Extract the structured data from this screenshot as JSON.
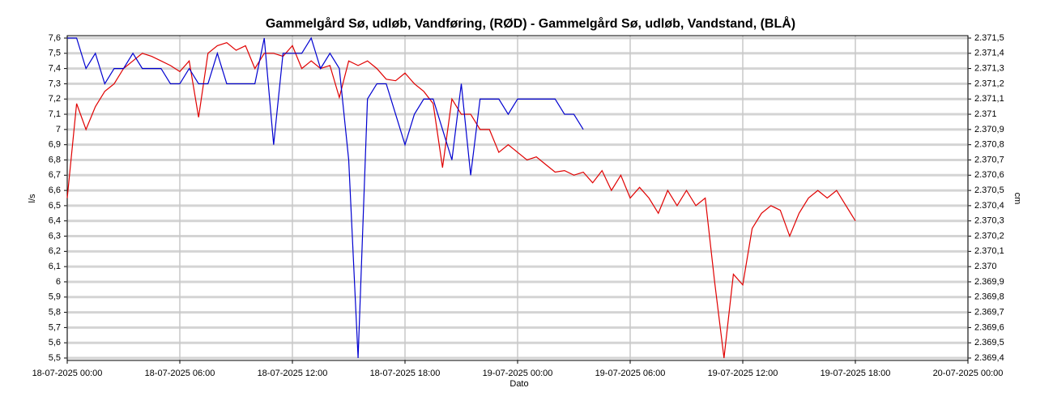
{
  "chart_data": {
    "type": "line",
    "title": "Gammelgård Sø, udløb, Vandføring, (RØD)  -  Gammelgård Sø, udløb, Vandstand, (BLÅ)",
    "x_label": "Dato",
    "y_label": "l/s",
    "y2_label": "cm",
    "x": [
      "18-07-2025 00:00",
      "18-07-2025 00:30",
      "18-07-2025 01:00",
      "18-07-2025 01:30",
      "18-07-2025 02:00",
      "18-07-2025 02:30",
      "18-07-2025 03:00",
      "18-07-2025 03:30",
      "18-07-2025 04:00",
      "18-07-2025 04:30",
      "18-07-2025 05:00",
      "18-07-2025 05:30",
      "18-07-2025 06:00",
      "18-07-2025 06:30",
      "18-07-2025 07:00",
      "18-07-2025 07:30",
      "18-07-2025 08:00",
      "18-07-2025 08:30",
      "18-07-2025 09:00",
      "18-07-2025 09:30",
      "18-07-2025 10:00",
      "18-07-2025 10:30",
      "18-07-2025 11:00",
      "18-07-2025 11:30",
      "18-07-2025 12:00",
      "18-07-2025 12:30",
      "18-07-2025 13:00",
      "18-07-2025 13:30",
      "18-07-2025 14:00",
      "18-07-2025 14:30",
      "18-07-2025 15:00",
      "18-07-2025 15:30",
      "18-07-2025 16:00",
      "18-07-2025 16:30",
      "18-07-2025 17:00",
      "18-07-2025 17:30",
      "18-07-2025 18:00",
      "18-07-2025 18:30",
      "18-07-2025 19:00",
      "18-07-2025 19:30",
      "18-07-2025 20:00",
      "18-07-2025 20:30",
      "18-07-2025 21:00",
      "18-07-2025 21:30",
      "18-07-2025 22:00",
      "18-07-2025 22:30",
      "18-07-2025 23:00",
      "18-07-2025 23:30",
      "19-07-2025 00:00",
      "19-07-2025 00:30",
      "19-07-2025 01:00",
      "19-07-2025 01:30",
      "19-07-2025 02:00",
      "19-07-2025 02:30",
      "19-07-2025 03:00",
      "19-07-2025 03:30",
      "19-07-2025 04:00",
      "19-07-2025 04:30",
      "19-07-2025 05:00",
      "19-07-2025 05:30",
      "19-07-2025 06:00",
      "19-07-2025 06:30",
      "19-07-2025 07:00",
      "19-07-2025 07:30",
      "19-07-2025 08:00",
      "19-07-2025 08:30",
      "19-07-2025 09:00",
      "19-07-2025 09:30",
      "19-07-2025 10:00",
      "19-07-2025 10:30",
      "19-07-2025 11:00",
      "19-07-2025 11:30",
      "19-07-2025 12:00",
      "19-07-2025 12:30",
      "19-07-2025 13:00",
      "19-07-2025 13:30",
      "19-07-2025 14:00",
      "19-07-2025 14:30",
      "19-07-2025 15:00",
      "19-07-2025 15:30",
      "19-07-2025 16:00",
      "19-07-2025 16:30",
      "19-07-2025 17:00",
      "19-07-2025 17:30",
      "19-07-2025 18:00"
    ],
    "series": [
      {
        "color": "#e00000",
        "values": [
          6.55,
          7.17,
          7.0,
          7.15,
          7.25,
          7.3,
          7.4,
          7.45,
          7.5,
          7.48,
          7.45,
          7.42,
          7.38,
          7.45,
          7.08,
          7.5,
          7.55,
          7.57,
          7.52,
          7.55,
          7.4,
          7.5,
          7.5,
          7.48,
          7.55,
          7.4,
          7.45,
          7.4,
          7.42,
          7.21,
          7.45,
          7.42,
          7.45,
          7.4,
          7.33,
          7.32,
          7.37,
          7.3,
          7.25,
          7.17,
          6.75,
          7.2,
          7.1,
          7.1,
          7.0,
          7.0,
          6.85,
          6.9,
          6.85,
          6.8,
          6.82,
          6.77,
          6.72,
          6.73,
          6.7,
          6.72,
          6.65,
          6.73,
          6.6,
          6.7,
          6.55,
          6.62,
          6.55,
          6.45,
          6.6,
          6.5,
          6.6,
          6.5,
          6.55,
          6.0,
          5.5,
          6.05,
          5.98,
          6.35,
          6.45,
          6.5,
          6.47,
          6.3,
          6.45,
          6.55,
          6.6,
          6.55,
          6.6,
          6.5,
          6.4
        ]
      },
      {
        "color": "#0000d0",
        "axis": "y2",
        "values": [
          2371.5,
          2371.5,
          2371.3,
          2371.4,
          2371.2,
          2371.3,
          2371.3,
          2371.4,
          2371.3,
          2371.3,
          2371.3,
          2371.2,
          2371.2,
          2371.3,
          2371.2,
          2371.2,
          2371.4,
          2371.2,
          2371.2,
          2371.2,
          2371.2,
          2371.5,
          2370.8,
          2371.4,
          2371.4,
          2371.4,
          2371.5,
          2371.3,
          2371.4,
          2371.3,
          2370.7,
          2369.4,
          2371.1,
          2371.2,
          2371.2,
          2371.0,
          2370.8,
          2371.0,
          2371.1,
          2371.1,
          2370.9,
          2370.7,
          2371.2,
          2370.6,
          2371.1,
          2371.1,
          2371.1,
          2371.0,
          2371.1,
          2371.1,
          2371.1,
          2371.1,
          2371.1,
          2371.0,
          2371.0,
          2370.9,
          null,
          null,
          null,
          null,
          null,
          null,
          null,
          null,
          null,
          null,
          null,
          null,
          null,
          null,
          null,
          null,
          null,
          null,
          null,
          null,
          null,
          null,
          null,
          null,
          null,
          null,
          null,
          null,
          null
        ]
      }
    ],
    "xlim": [
      "18-07-2025 00:00",
      "20-07-2025 00:00"
    ],
    "xticks": [
      "18-07-2025 00:00",
      "18-07-2025 06:00",
      "18-07-2025 12:00",
      "18-07-2025 18:00",
      "19-07-2025 00:00",
      "19-07-2025 06:00",
      "19-07-2025 12:00",
      "19-07-2025 18:00",
      "20-07-2025 00:00"
    ],
    "ylim": [
      5.5,
      7.6
    ],
    "yticks": [
      {
        "value": 5.5,
        "label": "5,5"
      },
      {
        "value": 5.6,
        "label": "5,6"
      },
      {
        "value": 5.7,
        "label": "5,7"
      },
      {
        "value": 5.8,
        "label": "5,8"
      },
      {
        "value": 5.9,
        "label": "5,9"
      },
      6,
      {
        "value": 6.1,
        "label": "6,1"
      },
      {
        "value": 6.2,
        "label": "6,2"
      },
      {
        "value": 6.3,
        "label": "6,3"
      },
      {
        "value": 6.4,
        "label": "6,4"
      },
      {
        "value": 6.5,
        "label": "6,5"
      },
      {
        "value": 6.6,
        "label": "6,6"
      },
      {
        "value": 6.7,
        "label": "6,7"
      },
      {
        "value": 6.8,
        "label": "6,8"
      },
      {
        "value": 6.9,
        "label": "6,9"
      },
      7,
      {
        "value": 7.1,
        "label": "7,1"
      },
      {
        "value": 7.2,
        "label": "7,2"
      },
      {
        "value": 7.3,
        "label": "7,3"
      },
      {
        "value": 7.4,
        "label": "7,4"
      },
      {
        "value": 7.5,
        "label": "7,5"
      },
      {
        "value": 7.6,
        "label": "7,6"
      }
    ],
    "y2lim": [
      2369.4,
      2371.5
    ],
    "y2ticks": [
      {
        "value": 2369.4,
        "label": "2.369,4"
      },
      {
        "value": 2369.5,
        "label": "2.369,5"
      },
      {
        "value": 2369.6,
        "label": "2.369,6"
      },
      {
        "value": 2369.7,
        "label": "2.369,7"
      },
      {
        "value": 2369.8,
        "label": "2.369,8"
      },
      {
        "value": 2369.9,
        "label": "2.369,9"
      },
      {
        "value": 2370,
        "label": "2.370"
      },
      {
        "value": 2370.1,
        "label": "2.370,1"
      },
      {
        "value": 2370.2,
        "label": "2.370,2"
      },
      {
        "value": 2370.3,
        "label": "2.370,3"
      },
      {
        "value": 2370.4,
        "label": "2.370,4"
      },
      {
        "value": 2370.5,
        "label": "2.370,5"
      },
      {
        "value": 2370.6,
        "label": "2.370,6"
      },
      {
        "value": 2370.7,
        "label": "2.370,7"
      },
      {
        "value": 2370.8,
        "label": "2.370,8"
      },
      {
        "value": 2370.9,
        "label": "2.370,9"
      },
      {
        "value": 2371,
        "label": "2.371"
      },
      {
        "value": 2371.1,
        "label": "2.371,1"
      },
      {
        "value": 2371.2,
        "label": "2.371,2"
      },
      {
        "value": 2371.3,
        "label": "2.371,3"
      },
      {
        "value": 2371.4,
        "label": "2.371,4"
      },
      {
        "value": 2371.5,
        "label": "2.371,5"
      }
    ],
    "grid": true
  }
}
